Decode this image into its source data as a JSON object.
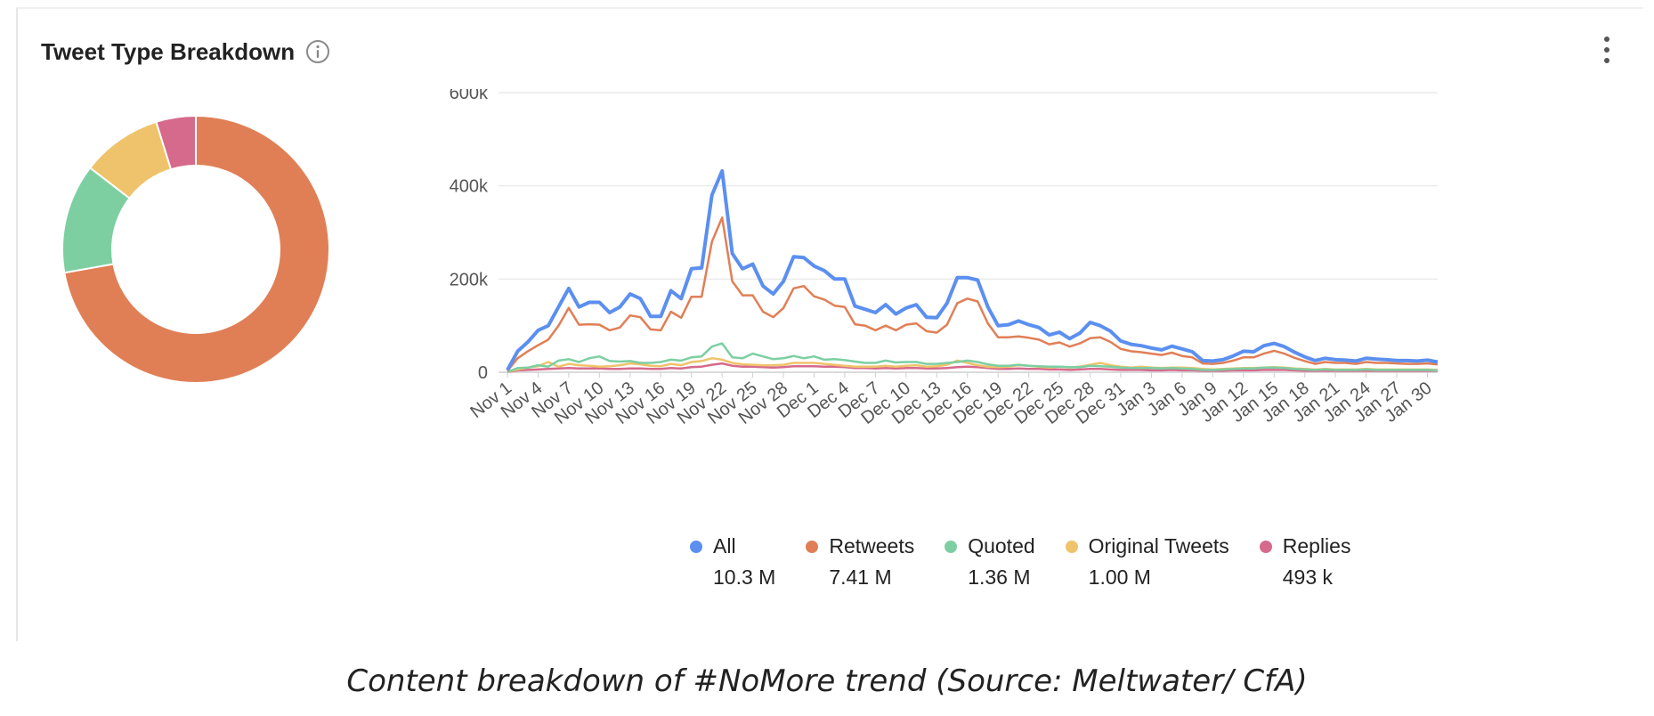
{
  "card": {
    "title": "Tweet Type Breakdown",
    "info_icon": "info-circle-icon",
    "menu_icon": "more-vertical-icon"
  },
  "caption": "Content breakdown of #NoMore trend (Source: Meltwater/ CfA)",
  "colors": {
    "all": "#5b8ff0",
    "retweets": "#e07f56",
    "quoted": "#7dcfa2",
    "original": "#efc36b",
    "replies": "#d66a8c"
  },
  "legend": [
    {
      "key": "all",
      "label": "All",
      "value": "10.3 M"
    },
    {
      "key": "retweets",
      "label": "Retweets",
      "value": "7.41 M"
    },
    {
      "key": "quoted",
      "label": "Quoted",
      "value": "1.36 M"
    },
    {
      "key": "original",
      "label": "Original Tweets",
      "value": "1.00 M"
    },
    {
      "key": "replies",
      "label": "Replies",
      "value": "493 k"
    }
  ],
  "chart_data": [
    {
      "type": "pie",
      "style": "donut",
      "series": [
        {
          "key": "retweets",
          "value": 7.41
        },
        {
          "key": "quoted",
          "value": 1.36
        },
        {
          "key": "original",
          "value": 1.0
        },
        {
          "key": "replies",
          "value": 0.493
        }
      ]
    },
    {
      "type": "line",
      "ylim": [
        0,
        600000
      ],
      "yticks": [
        0,
        200000,
        400000,
        600000
      ],
      "ytick_labels": [
        "0",
        "200k",
        "400k",
        "600k"
      ],
      "grid": true,
      "legend_position": "bottom",
      "x_labels": [
        "Nov 1",
        "Nov 4",
        "Nov 7",
        "Nov 10",
        "Nov 13",
        "Nov 16",
        "Nov 19",
        "Nov 22",
        "Nov 25",
        "Nov 28",
        "Dec 1",
        "Dec 4",
        "Dec 7",
        "Dec 10",
        "Dec 13",
        "Dec 16",
        "Dec 19",
        "Dec 22",
        "Dec 25",
        "Dec 28",
        "Dec 31",
        "Jan 3",
        "Jan 6",
        "Jan 9",
        "Jan 12",
        "Jan 15",
        "Jan 18",
        "Jan 21",
        "Jan 24",
        "Jan 27",
        "Jan 30"
      ],
      "series": [
        {
          "key": "all",
          "values": [
            5000,
            45000,
            65000,
            90000,
            100000,
            140000,
            180000,
            140000,
            150000,
            150000,
            128000,
            140000,
            168000,
            158000,
            120000,
            120000,
            175000,
            158000,
            222000,
            224000,
            380000,
            432000,
            255000,
            222000,
            232000,
            185000,
            168000,
            195000,
            248000,
            246000,
            228000,
            218000,
            200000,
            200000,
            142000,
            135000,
            128000,
            145000,
            125000,
            138000,
            145000,
            118000,
            117000,
            148000,
            203000,
            203000,
            198000,
            140000,
            100000,
            102000,
            110000,
            102000,
            96000,
            80000,
            86000,
            72000,
            84000,
            107000,
            100000,
            88000,
            67000,
            60000,
            57000,
            52000,
            48000,
            56000,
            50000,
            44000,
            25000,
            24000,
            27000,
            35000,
            45000,
            44000,
            57000,
            62000,
            55000,
            43000,
            33000,
            25000,
            30000,
            27000,
            26000,
            24000,
            30000,
            28000,
            27000,
            25000,
            25000,
            24000,
            26000,
            22000
          ]
        },
        {
          "key": "retweets",
          "values": [
            3000,
            30000,
            45000,
            58000,
            70000,
            100000,
            138000,
            102000,
            103000,
            102000,
            90000,
            96000,
            122000,
            118000,
            92000,
            90000,
            130000,
            117000,
            162000,
            162000,
            280000,
            332000,
            195000,
            165000,
            165000,
            130000,
            118000,
            138000,
            180000,
            185000,
            163000,
            156000,
            143000,
            140000,
            103000,
            100000,
            90000,
            100000,
            90000,
            102000,
            105000,
            88000,
            85000,
            102000,
            148000,
            158000,
            152000,
            105000,
            75000,
            75000,
            77000,
            74000,
            70000,
            60000,
            64000,
            55000,
            62000,
            73000,
            75000,
            65000,
            50000,
            45000,
            43000,
            40000,
            37000,
            42000,
            35000,
            32000,
            19000,
            18000,
            20000,
            25000,
            32000,
            32000,
            40000,
            46000,
            40000,
            31000,
            24000,
            18000,
            22000,
            20000,
            20000,
            18000,
            22000,
            20000,
            20000,
            19000,
            18000,
            18000,
            19000,
            17000
          ]
        },
        {
          "key": "quoted",
          "values": [
            1000,
            9000,
            10000,
            15000,
            12000,
            25000,
            28000,
            22000,
            30000,
            34000,
            24000,
            23000,
            24000,
            20000,
            20000,
            22000,
            27000,
            25000,
            32000,
            34000,
            55000,
            62000,
            32000,
            30000,
            40000,
            34000,
            28000,
            30000,
            35000,
            30000,
            34000,
            27000,
            28000,
            26000,
            23000,
            20000,
            20000,
            25000,
            21000,
            22000,
            22000,
            18000,
            18000,
            20000,
            22000,
            25000,
            22000,
            17000,
            14000,
            14000,
            16000,
            14000,
            13000,
            12000,
            12000,
            11000,
            11000,
            14000,
            13000,
            12000,
            10000,
            9000,
            9000,
            9000,
            8000,
            9000,
            8000,
            7000,
            5000,
            5000,
            6000,
            7000,
            8000,
            8000,
            10000,
            10000,
            9000,
            7000,
            6000,
            5000,
            6000,
            5000,
            5000,
            5000,
            6000,
            5000,
            5000,
            5000,
            5000,
            5000,
            5000,
            4000
          ]
        },
        {
          "key": "original",
          "values": [
            1000,
            6000,
            10000,
            13000,
            22000,
            12000,
            18000,
            15000,
            14000,
            12000,
            13000,
            15000,
            19000,
            17000,
            14000,
            13000,
            18000,
            15000,
            22000,
            24000,
            30000,
            27000,
            20000,
            17000,
            16000,
            15000,
            15000,
            16000,
            20000,
            20000,
            20000,
            18000,
            16000,
            14000,
            12000,
            12000,
            12000,
            14000,
            12000,
            14000,
            15000,
            12000,
            13000,
            16000,
            25000,
            20000,
            15000,
            12000,
            11000,
            12000,
            15000,
            14000,
            12000,
            10000,
            12000,
            10000,
            12000,
            16000,
            20000,
            15000,
            12000,
            10000,
            12000,
            10000,
            9000,
            10000,
            10000,
            9000,
            7000,
            6000,
            7000,
            8000,
            9000,
            9000,
            10000,
            11000,
            10000,
            8000,
            7000,
            6000,
            7000,
            6000,
            6000,
            6000,
            7000,
            6000,
            6000,
            6000,
            6000,
            6000,
            6000,
            5000
          ]
        },
        {
          "key": "replies",
          "values": [
            500,
            4000,
            5000,
            6000,
            7000,
            8000,
            9000,
            8000,
            8000,
            8000,
            7000,
            7000,
            8000,
            8000,
            7000,
            7000,
            9000,
            8000,
            11000,
            12000,
            16000,
            19000,
            14000,
            12000,
            12000,
            11000,
            10000,
            11000,
            13000,
            13000,
            13000,
            12000,
            12000,
            11000,
            9000,
            9000,
            8000,
            9000,
            8000,
            9000,
            9000,
            8000,
            8000,
            9000,
            11000,
            12000,
            11000,
            9000,
            7000,
            7000,
            8000,
            7000,
            7000,
            6000,
            6000,
            5000,
            6000,
            7000,
            7000,
            6000,
            5000,
            5000,
            5000,
            4000,
            4000,
            5000,
            4000,
            4000,
            3000,
            3000,
            3000,
            4000,
            4000,
            4000,
            5000,
            5000,
            5000,
            4000,
            3000,
            3000,
            3000,
            3000,
            3000,
            3000,
            3000,
            3000,
            3000,
            3000,
            3000,
            3000,
            3000,
            3000
          ]
        }
      ]
    }
  ]
}
